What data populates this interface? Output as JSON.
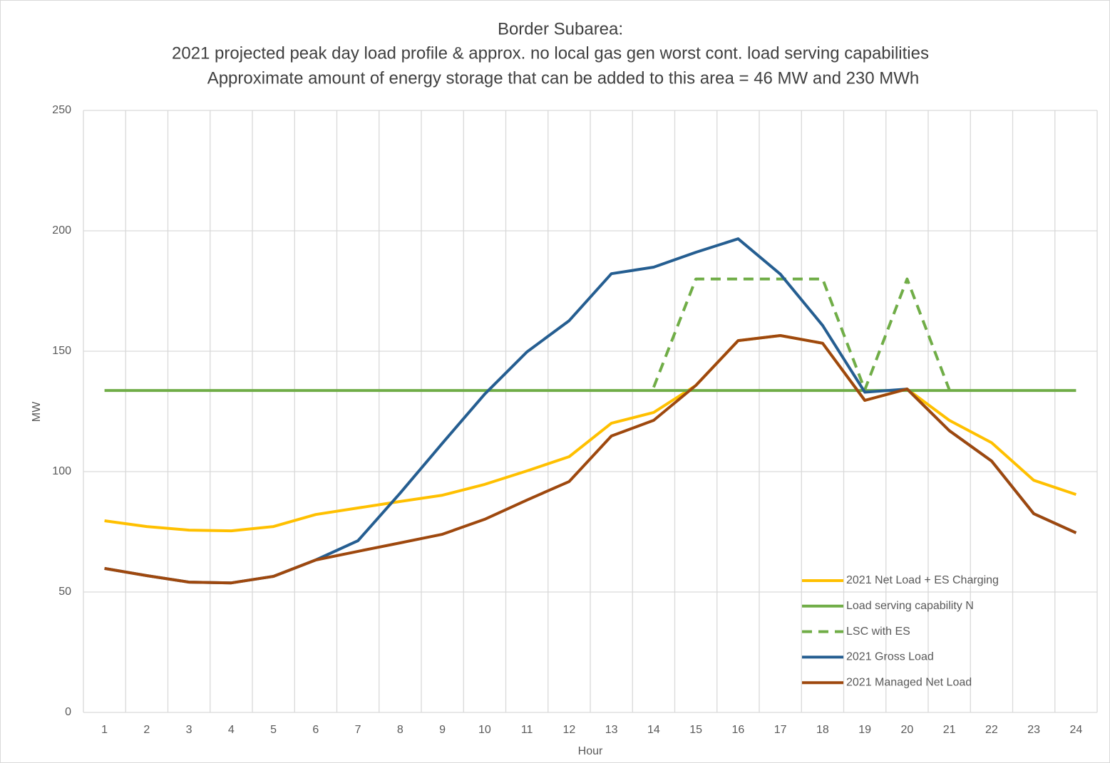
{
  "chart_data": {
    "type": "line",
    "title": [
      "Border Subarea:",
      "2021 projected peak day load profile & approx. no local gas gen worst cont. load serving capabilities",
      "Approximate amount of energy storage that can be added to this area = 46 MW and 230 MWh"
    ],
    "x_label": "Hour",
    "y_label": "MW",
    "categories": [
      "1",
      "2",
      "3",
      "4",
      "5",
      "6",
      "7",
      "8",
      "9",
      "10",
      "11",
      "12",
      "13",
      "14",
      "15",
      "16",
      "17",
      "18",
      "19",
      "20",
      "21",
      "22",
      "23",
      "24"
    ],
    "ylim": [
      0,
      250
    ],
    "yticks": [
      0,
      50,
      100,
      150,
      200,
      250
    ],
    "grid": true,
    "legend": "lower right",
    "series": [
      {
        "name": "2021 Net Load + ES Charging",
        "color": "#FFC000",
        "dashed": false,
        "values": [
          79.6,
          77.2,
          75.7,
          75.4,
          77.2,
          82.2,
          84.9,
          87.6,
          90.2,
          94.7,
          100.3,
          106.2,
          120.1,
          124.6,
          135.8,
          154.4,
          156.5,
          153.3,
          129.6,
          134.3,
          121.3,
          112.0,
          96.4,
          90.5
        ]
      },
      {
        "name": "Load serving capability N",
        "color": "#70AD47",
        "dashed": false,
        "values": [
          133.7,
          133.7,
          133.7,
          133.7,
          133.7,
          133.7,
          133.7,
          133.7,
          133.7,
          133.7,
          133.7,
          133.7,
          133.7,
          133.7,
          133.7,
          133.7,
          133.7,
          133.7,
          133.7,
          133.7,
          133.7,
          133.7,
          133.7,
          133.7
        ]
      },
      {
        "name": "LSC with ES",
        "color": "#70AD47",
        "dashed": true,
        "values": [
          null,
          null,
          null,
          null,
          null,
          null,
          null,
          null,
          null,
          null,
          null,
          null,
          null,
          135,
          180,
          180,
          180,
          180,
          134,
          180,
          134,
          null,
          null,
          null
        ]
      },
      {
        "name": "2021 Gross Load",
        "color": "#255E91",
        "dashed": false,
        "values": [
          59.8,
          56.8,
          54.1,
          53.8,
          56.5,
          63.3,
          71.3,
          91.1,
          111.8,
          132.2,
          149.7,
          162.7,
          182.2,
          184.9,
          191.1,
          196.7,
          182.0,
          160.7,
          133.0,
          134.3,
          117.0,
          104.4,
          82.5,
          74.6
        ]
      },
      {
        "name": "2021 Managed Net Load",
        "color": "#9E480E",
        "dashed": false,
        "values": [
          59.8,
          56.8,
          54.1,
          53.8,
          56.5,
          63.3,
          66.9,
          70.4,
          74.0,
          80.2,
          88.2,
          95.9,
          114.8,
          121.3,
          135.8,
          154.4,
          156.5,
          153.3,
          129.6,
          134.3,
          117.0,
          104.4,
          82.5,
          74.6
        ]
      }
    ]
  }
}
